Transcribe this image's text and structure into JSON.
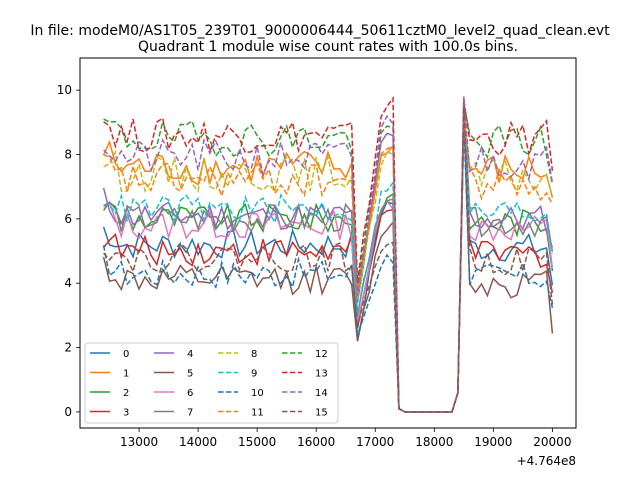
{
  "figure": {
    "suptitle": "In file: modeM0/AS1T05_239T01_9000006444_50611cztM0_level2_quad_clean.evt",
    "title": "Quadrant 1 module wise count rates with 100.0s bins.",
    "x_offset_label": "+4.764e8"
  },
  "colors": {
    "0": "#1f77b4",
    "1": "#ff7f0e",
    "2": "#2ca02c",
    "3": "#d62728",
    "4": "#9467bd",
    "5": "#8c564b",
    "6": "#e377c2",
    "7": "#7f7f7f",
    "8": "#bcbd22",
    "9": "#17becf",
    "10": "#1f77b4",
    "11": "#ff7f0e",
    "12": "#2ca02c",
    "13": "#d62728",
    "14": "#9467bd",
    "15": "#8c564b"
  },
  "chart_data": {
    "type": "line",
    "title": "Quadrant 1 module wise count rates with 100.0s bins.",
    "xlabel": "",
    "ylabel": "",
    "x_offset": "+4.764e8",
    "xlim": [
      12000,
      20400
    ],
    "ylim": [
      -0.5,
      11.0
    ],
    "xticks": [
      13000,
      14000,
      15000,
      16000,
      17000,
      18000,
      19000,
      20000
    ],
    "yticks": [
      0,
      2,
      4,
      6,
      8,
      10
    ],
    "grid": false,
    "legend": {
      "placement": "lower-left",
      "ncol": 4
    },
    "x_start": 12400,
    "x_step": 100,
    "segment_pattern": {
      "description": "Each series: 43 points from 12400 to 16600, then rise 16700-17300, drop to ~0 17400-18300, spike at 18500, then 15 points to 20000",
      "drop_x": [
        16700,
        17300,
        17400,
        18300,
        18400,
        18500
      ]
    },
    "series": [
      {
        "name": "0",
        "style": "solid",
        "level": 5.2,
        "spike": 9.5,
        "rise": 6.5,
        "dip": 2.2
      },
      {
        "name": "1",
        "style": "solid",
        "level": 7.6,
        "spike": 9.0,
        "rise": 8.2,
        "dip": 3.8
      },
      {
        "name": "2",
        "style": "solid",
        "level": 6.0,
        "spike": 9.2,
        "rise": 6.6,
        "dip": 2.8
      },
      {
        "name": "3",
        "style": "solid",
        "level": 5.0,
        "spike": 9.0,
        "rise": 6.4,
        "dip": 2.6
      },
      {
        "name": "4",
        "style": "solid",
        "level": 6.1,
        "spike": 9.8,
        "rise": 8.6,
        "dip": 3.4
      },
      {
        "name": "5",
        "style": "solid",
        "level": 4.1,
        "spike": 9.4,
        "rise": 5.8,
        "dip": 2.2
      },
      {
        "name": "6",
        "style": "solid",
        "level": 5.8,
        "spike": 9.0,
        "rise": 6.5,
        "dip": 2.8
      },
      {
        "name": "7",
        "style": "solid",
        "level": 6.0,
        "spike": 9.3,
        "rise": 6.7,
        "dip": 3.0
      },
      {
        "name": "8",
        "style": "dashed",
        "level": 7.4,
        "spike": 9.1,
        "rise": 8.0,
        "dip": 3.5
      },
      {
        "name": "9",
        "style": "dashed",
        "level": 6.3,
        "spike": 9.2,
        "rise": 7.0,
        "dip": 3.0
      },
      {
        "name": "10",
        "style": "dashed",
        "level": 4.3,
        "spike": 9.0,
        "rise": 4.8,
        "dip": 2.4
      },
      {
        "name": "11",
        "style": "dashed",
        "level": 7.2,
        "spike": 9.1,
        "rise": 8.3,
        "dip": 3.6
      },
      {
        "name": "12",
        "style": "dashed",
        "level": 8.5,
        "spike": 9.6,
        "rise": 8.8,
        "dip": 4.0
      },
      {
        "name": "13",
        "style": "dashed",
        "level": 8.6,
        "spike": 9.7,
        "rise": 9.6,
        "dip": 4.0
      },
      {
        "name": "14",
        "style": "dashed",
        "level": 7.9,
        "spike": 9.8,
        "rise": 9.1,
        "dip": 3.6
      },
      {
        "name": "15",
        "style": "dashed",
        "level": 4.8,
        "spike": 9.5,
        "rise": 5.3,
        "dip": 2.6
      }
    ]
  }
}
